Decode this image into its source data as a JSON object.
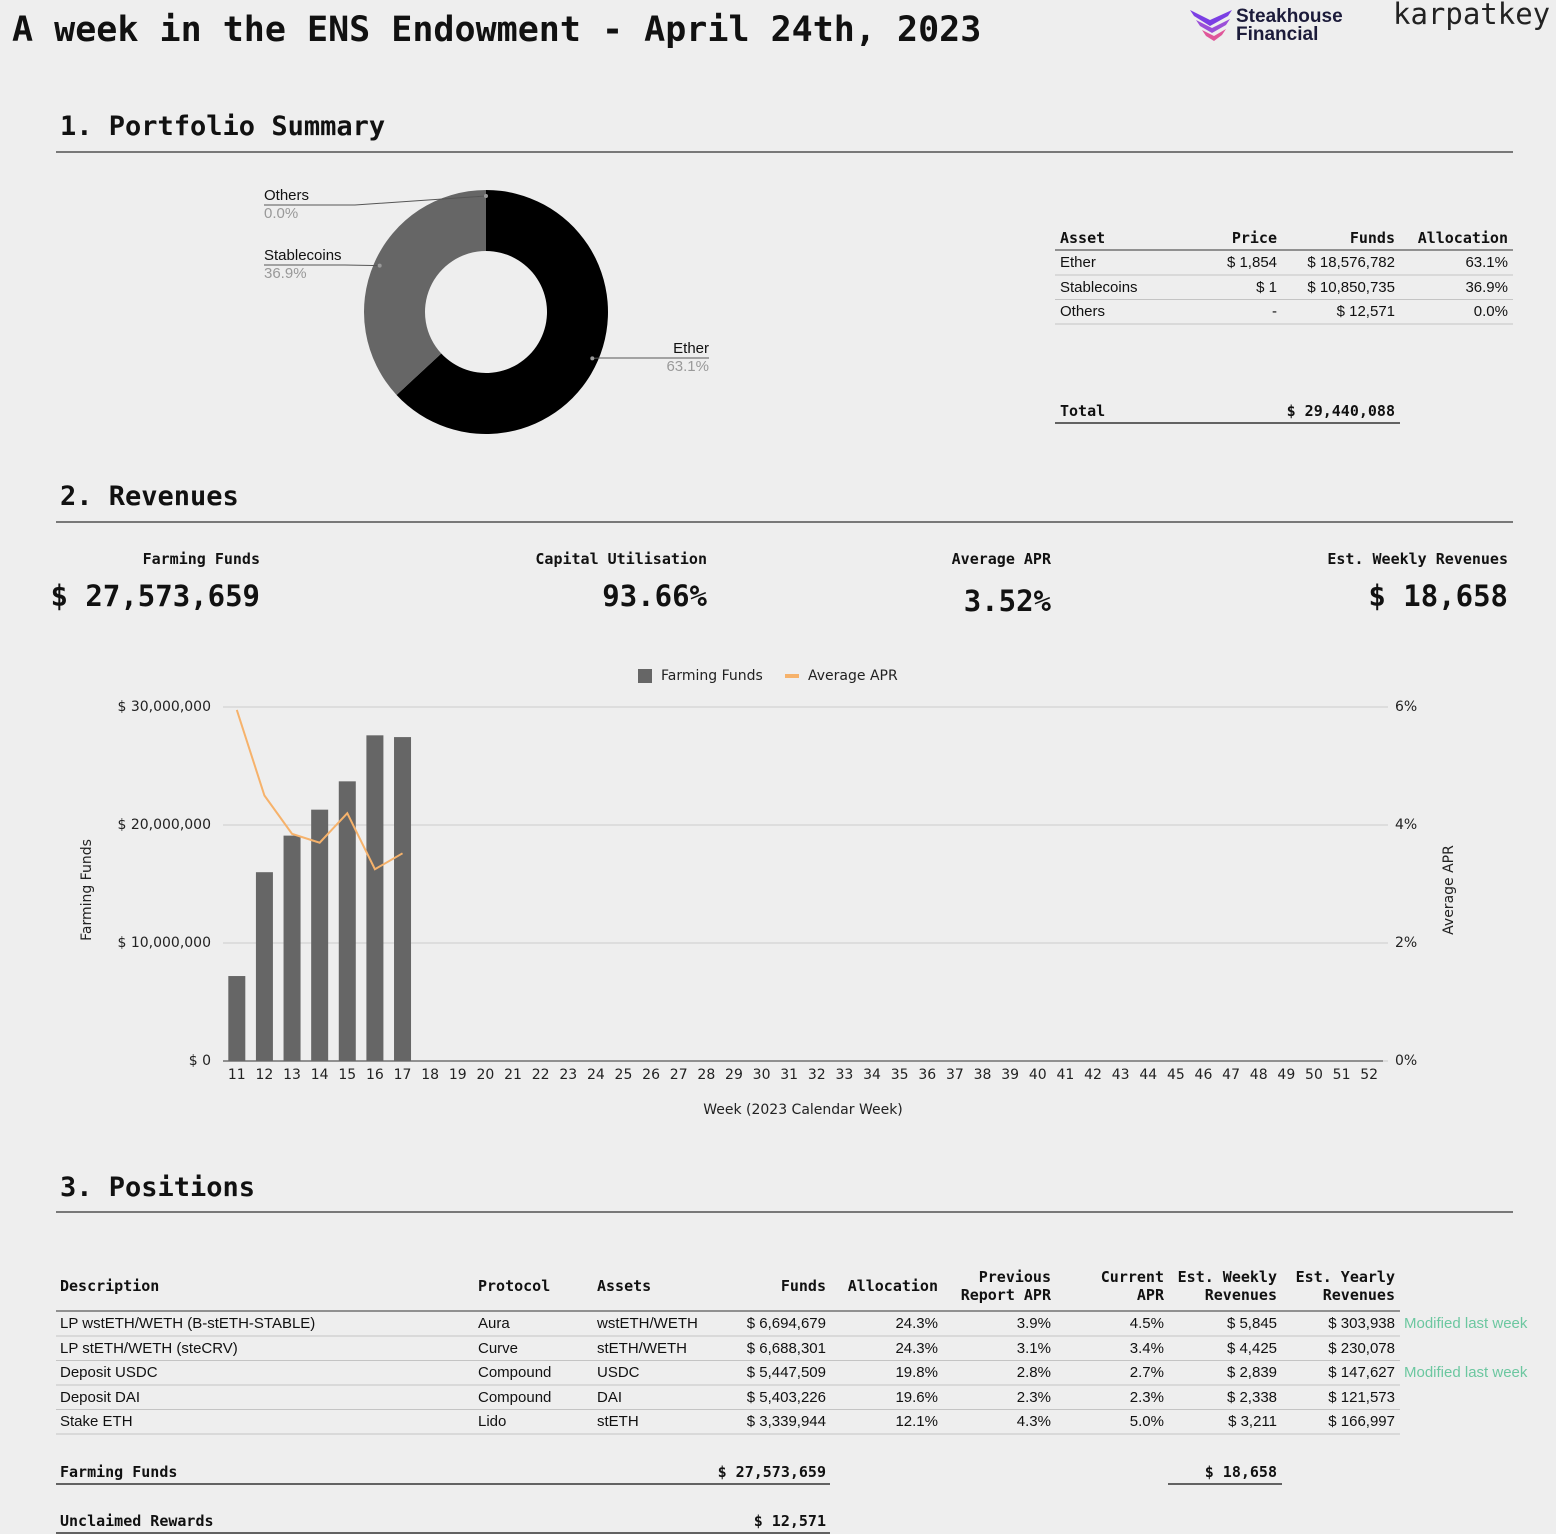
{
  "header": {
    "title": "A week in the ENS Endowment - April 24th, 2023",
    "logos": [
      "Steakhouse",
      "Financial",
      "karpatkey"
    ]
  },
  "sections": [
    "1. Portfolio Summary",
    "2. Revenues",
    "3. Positions"
  ],
  "chart_data": [
    {
      "type": "pie",
      "donut": true,
      "labels": [
        "Ether",
        "Stablecoins",
        "Others"
      ],
      "values": [
        63.1,
        36.9,
        0.0
      ],
      "value_labels": [
        "63.1%",
        "36.9%",
        "0.0%"
      ],
      "colors": [
        "#000000",
        "#666666",
        "#999999"
      ]
    },
    {
      "type": "bar",
      "categories": [
        "11",
        "12",
        "13",
        "14",
        "15",
        "16",
        "17",
        "18",
        "19",
        "20",
        "21",
        "22",
        "23",
        "24",
        "25",
        "26",
        "27",
        "28",
        "29",
        "30",
        "31",
        "32",
        "33",
        "34",
        "35",
        "36",
        "37",
        "38",
        "39",
        "40",
        "41",
        "42",
        "43",
        "44",
        "45",
        "46",
        "47",
        "48",
        "49",
        "50",
        "51",
        "52"
      ],
      "series": [
        {
          "name": "Farming Funds",
          "type": "bar",
          "color": "#666666",
          "values": [
            7200000,
            16000000,
            19100000,
            21300000,
            23700000,
            27600000,
            27450000,
            null,
            null,
            null,
            null,
            null,
            null,
            null,
            null,
            null,
            null,
            null,
            null,
            null,
            null,
            null,
            null,
            null,
            null,
            null,
            null,
            null,
            null,
            null,
            null,
            null,
            null,
            null,
            null,
            null,
            null,
            null,
            null,
            null,
            null,
            null
          ]
        },
        {
          "name": "Average APR",
          "type": "line",
          "axis": "y2",
          "color": "#f6b26b",
          "values": [
            5.95,
            4.5,
            3.85,
            3.7,
            4.2,
            3.25,
            3.52,
            null,
            null,
            null,
            null,
            null,
            null,
            null,
            null,
            null,
            null,
            null,
            null,
            null,
            null,
            null,
            null,
            null,
            null,
            null,
            null,
            null,
            null,
            null,
            null,
            null,
            null,
            null,
            null,
            null,
            null,
            null,
            null,
            null,
            null,
            null
          ]
        }
      ],
      "xlabel": "Week (2023 Calendar Week)",
      "ylabel": "Farming Funds",
      "y2label": "Average APR",
      "ylim": [
        0,
        30000000
      ],
      "yticks": [
        {
          "value": 0,
          "label": "$ 0"
        },
        {
          "value": 10000000,
          "label": "$ 10,000,000"
        },
        {
          "value": 20000000,
          "label": "$ 20,000,000"
        },
        {
          "value": 30000000,
          "label": "$ 30,000,000"
        }
      ],
      "y2lim": [
        0,
        6
      ],
      "y2ticks": [
        {
          "value": 0,
          "label": "0%"
        },
        {
          "value": 2,
          "label": "2%"
        },
        {
          "value": 4,
          "label": "4%"
        },
        {
          "value": 6,
          "label": "6%"
        }
      ],
      "grid": true,
      "legend": "top"
    }
  ],
  "summary_table": {
    "columns": [
      "Asset",
      "Price",
      "Funds",
      "Allocation"
    ],
    "rows": [
      [
        "Ether",
        "$ 1,854",
        "$ 18,576,782",
        "63.1%"
      ],
      [
        "Stablecoins",
        "$ 1",
        "$ 10,850,735",
        "36.9%"
      ],
      [
        "Others",
        "-",
        "$ 12,571",
        "0.0%"
      ]
    ],
    "total": [
      "Total",
      "$ 29,440,088"
    ]
  },
  "kpis": [
    {
      "label": "Farming Funds",
      "value": "$ 27,573,659"
    },
    {
      "label": "Capital Utilisation",
      "value": "93.66%"
    },
    {
      "label": "Average APR",
      "value": "3.52%"
    },
    {
      "label": "Est. Weekly Revenues",
      "value": "$ 18,658"
    }
  ],
  "positions": {
    "columns": [
      "Description",
      "Protocol",
      "Assets",
      "Funds",
      "Allocation",
      "Previous Report APR",
      "Current APR",
      "Est. Weekly Revenues",
      "Est. Yearly Revenues"
    ],
    "rows": [
      {
        "cells": [
          "LP wstETH/WETH (B-stETH-STABLE)",
          "Aura",
          "wstETH/WETH",
          "$ 6,694,679",
          "24.3%",
          "3.9%",
          "4.5%",
          "$ 5,845",
          "$ 303,938"
        ],
        "note": "Modified last week"
      },
      {
        "cells": [
          "LP stETH/WETH (steCRV)",
          "Curve",
          "stETH/WETH",
          "$ 6,688,301",
          "24.3%",
          "3.1%",
          "3.4%",
          "$ 4,425",
          "$ 230,078"
        ]
      },
      {
        "cells": [
          "Deposit USDC",
          "Compound",
          "USDC",
          "$ 5,447,509",
          "19.8%",
          "2.8%",
          "2.7%",
          "$ 2,839",
          "$ 147,627"
        ],
        "note": "Modified last week"
      },
      {
        "cells": [
          "Deposit DAI",
          "Compound",
          "DAI",
          "$ 5,403,226",
          "19.6%",
          "2.3%",
          "2.3%",
          "$ 2,338",
          "$ 121,573"
        ]
      },
      {
        "cells": [
          "Stake ETH",
          "Lido",
          "stETH",
          "$ 3,339,944",
          "12.1%",
          "4.3%",
          "5.0%",
          "$ 3,211",
          "$ 166,997"
        ]
      }
    ],
    "totals": [
      {
        "label": "Farming Funds",
        "funds": "$ 27,573,659",
        "weekly": "$ 18,658"
      },
      {
        "label": "Unclaimed Rewards",
        "funds": "$ 12,571"
      }
    ]
  }
}
